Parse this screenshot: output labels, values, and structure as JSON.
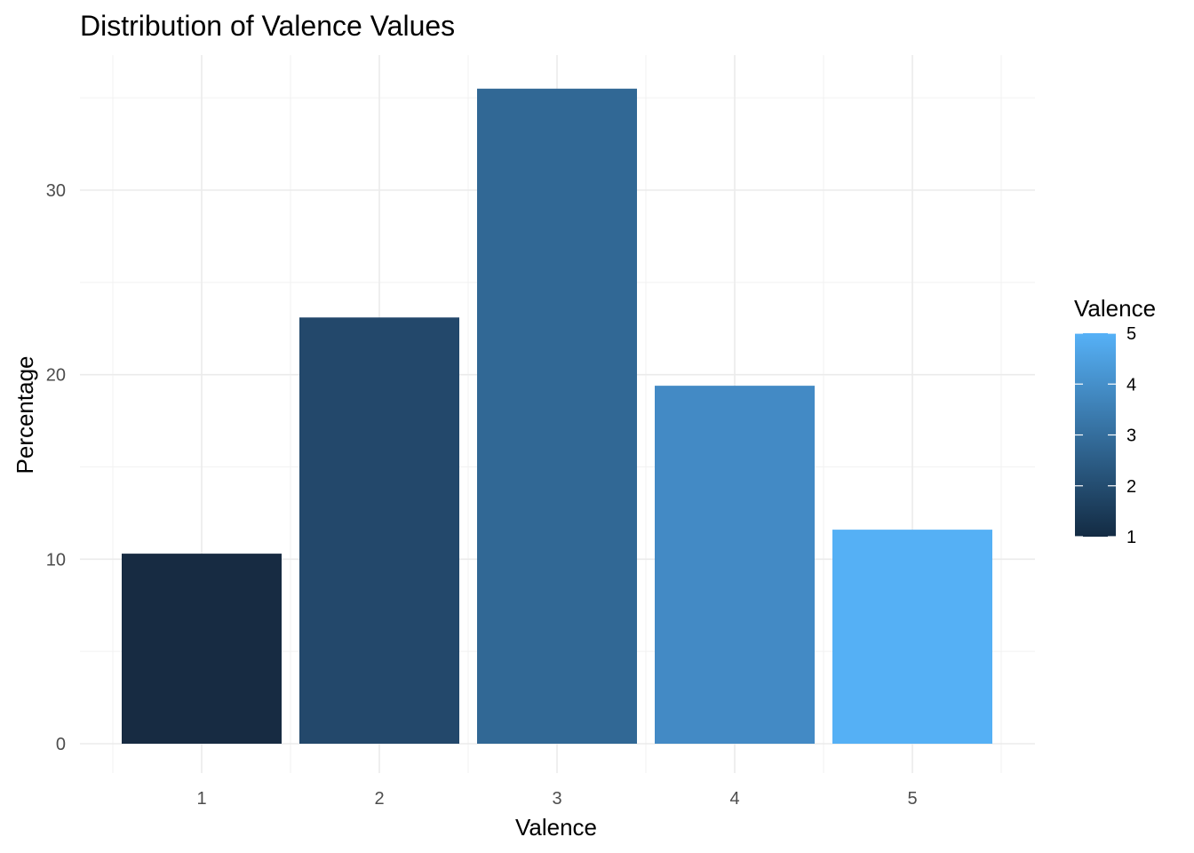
{
  "chart_data": {
    "type": "bar",
    "title": "Distribution of Valence Values",
    "xlabel": "Valence",
    "ylabel": "Percentage",
    "categories": [
      "1",
      "2",
      "3",
      "4",
      "5"
    ],
    "values": [
      10.3,
      23.1,
      35.5,
      19.4,
      11.6
    ],
    "ylim": [
      0,
      35.5
    ],
    "yticks": [
      "0",
      "10",
      "20",
      "30"
    ],
    "ytick_values": [
      0,
      10,
      20,
      30
    ],
    "grid": true,
    "bar_colors": [
      "#172B42",
      "#23486B",
      "#316895",
      "#438AC5",
      "#55B0F5"
    ],
    "legend": {
      "title": "Valence",
      "placement": "right",
      "type": "colorbar",
      "low_color": "#132B43",
      "high_color": "#56B1F7",
      "labels": [
        "5",
        "4",
        "3",
        "2",
        "1"
      ],
      "label_values": [
        5,
        4,
        3,
        2,
        1
      ]
    }
  }
}
